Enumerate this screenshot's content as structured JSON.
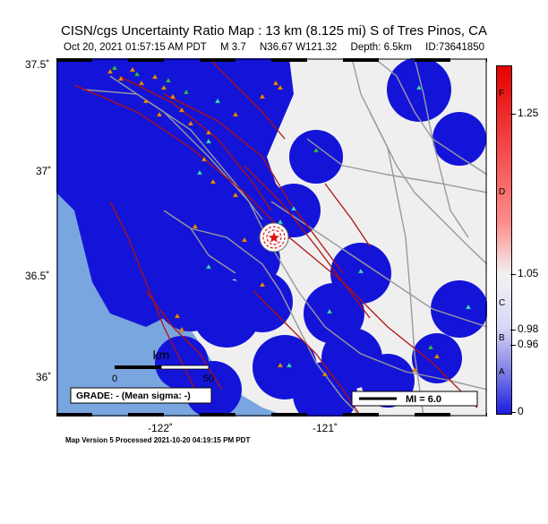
{
  "header": {
    "title": "CISN/cgs Uncertainty Ratio Map : 13 km (8.125 mi) S of Tres Pinos, CA",
    "date": "Oct 20, 2021 01:57:15 AM PDT",
    "magnitude": "M 3.7",
    "location": "N36.67 W121.32",
    "depth": "Depth: 6.5km",
    "id": "ID:73641850"
  },
  "axes": {
    "lat_labels": [
      "37.5˚",
      "37˚",
      "36.5˚",
      "36˚"
    ],
    "lon_labels": [
      "-122˚",
      "-121˚"
    ]
  },
  "scale_bar": {
    "unit": "km",
    "ticks": [
      "0",
      "50"
    ]
  },
  "grade_box": "GRADE: - (Mean sigma: -)",
  "legend_mi": "MI = 6.0",
  "colorbar": {
    "letters": [
      "F",
      "D",
      "C",
      "B",
      "A"
    ],
    "ticks": [
      "1.25",
      "1.05",
      "0.98",
      "0.96",
      "0"
    ],
    "colors": {
      "top": "#e50000",
      "mid": "#f2f2f2",
      "bottom": "#1b1be0"
    }
  },
  "footer": "Map Version 5 Processed 2021-10-20 04:19:15 PM PDT",
  "colors": {
    "ocean": "#7aa6df",
    "land": "#efefef",
    "uncertainty_blue": "#1414d9",
    "roads": "#9a9a9a",
    "faults": "#b01010",
    "station_orange": "#f08a1e",
    "station_cyan": "#3fd7d0",
    "station_green": "#30c060"
  },
  "icons": {
    "epicenter": "epicenter-star-icon",
    "station": "station-triangle-icon"
  }
}
